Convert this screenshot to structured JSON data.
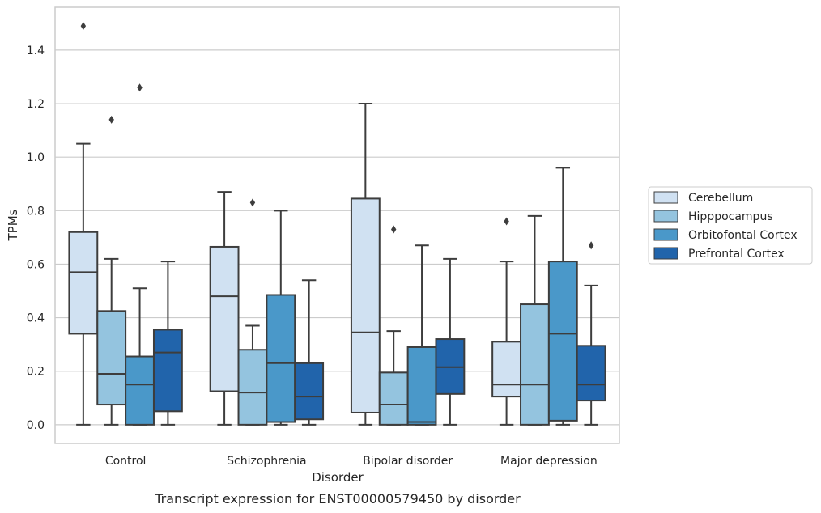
{
  "chart_data": {
    "type": "box",
    "xlabel": "Disorder",
    "ylabel": "TPMs",
    "caption": "Transcript expression for ENST00000579450 by disorder",
    "ylim": [
      -0.07,
      1.56
    ],
    "yticks": [
      "0.0",
      "0.2",
      "0.4",
      "0.6",
      "0.8",
      "1.0",
      "1.2",
      "1.4"
    ],
    "grid": "horizontal",
    "legend_position": "right",
    "categories": [
      "Control",
      "Schizophrenia",
      "Bipolar disorder",
      "Major depression"
    ],
    "series": [
      {
        "name": "Cerebellum",
        "color": "#d0e1f2",
        "boxes": [
          {
            "whislo": 0.0,
            "q1": 0.34,
            "med": 0.57,
            "q3": 0.72,
            "whishi": 1.05,
            "fliers": [
              1.49
            ]
          },
          {
            "whislo": 0.0,
            "q1": 0.125,
            "med": 0.48,
            "q3": 0.665,
            "whishi": 0.87,
            "fliers": []
          },
          {
            "whislo": 0.0,
            "q1": 0.045,
            "med": 0.345,
            "q3": 0.845,
            "whishi": 1.2,
            "fliers": []
          },
          {
            "whislo": 0.0,
            "q1": 0.105,
            "med": 0.15,
            "q3": 0.31,
            "whishi": 0.61,
            "fliers": [
              0.76
            ]
          }
        ]
      },
      {
        "name": "Hipppocampus",
        "color": "#94c4df",
        "boxes": [
          {
            "whislo": 0.0,
            "q1": 0.075,
            "med": 0.19,
            "q3": 0.425,
            "whishi": 0.62,
            "fliers": [
              1.14
            ]
          },
          {
            "whislo": 0.0,
            "q1": 0.0,
            "med": 0.12,
            "q3": 0.28,
            "whishi": 0.37,
            "fliers": [
              0.83
            ]
          },
          {
            "whislo": 0.0,
            "q1": 0.0,
            "med": 0.075,
            "q3": 0.195,
            "whishi": 0.35,
            "fliers": [
              0.73
            ]
          },
          {
            "whislo": 0.0,
            "q1": 0.0,
            "med": 0.15,
            "q3": 0.45,
            "whishi": 0.78,
            "fliers": []
          }
        ]
      },
      {
        "name": "Orbitofontal Cortex",
        "color": "#4a98c9",
        "boxes": [
          {
            "whislo": 0.0,
            "q1": 0.0,
            "med": 0.15,
            "q3": 0.255,
            "whishi": 0.51,
            "fliers": [
              1.26
            ]
          },
          {
            "whislo": 0.0,
            "q1": 0.01,
            "med": 0.23,
            "q3": 0.485,
            "whishi": 0.8,
            "fliers": []
          },
          {
            "whislo": 0.0,
            "q1": 0.0,
            "med": 0.01,
            "q3": 0.29,
            "whishi": 0.67,
            "fliers": []
          },
          {
            "whislo": 0.0,
            "q1": 0.015,
            "med": 0.34,
            "q3": 0.61,
            "whishi": 0.96,
            "fliers": []
          }
        ]
      },
      {
        "name": "Prefrontal Cortex",
        "color": "#2164ab",
        "boxes": [
          {
            "whislo": 0.0,
            "q1": 0.05,
            "med": 0.27,
            "q3": 0.355,
            "whishi": 0.61,
            "fliers": []
          },
          {
            "whislo": 0.0,
            "q1": 0.02,
            "med": 0.105,
            "q3": 0.23,
            "whishi": 0.54,
            "fliers": []
          },
          {
            "whislo": 0.0,
            "q1": 0.115,
            "med": 0.215,
            "q3": 0.32,
            "whishi": 0.62,
            "fliers": []
          },
          {
            "whislo": 0.0,
            "q1": 0.09,
            "med": 0.15,
            "q3": 0.295,
            "whishi": 0.52,
            "fliers": [
              0.67
            ]
          }
        ]
      }
    ]
  }
}
